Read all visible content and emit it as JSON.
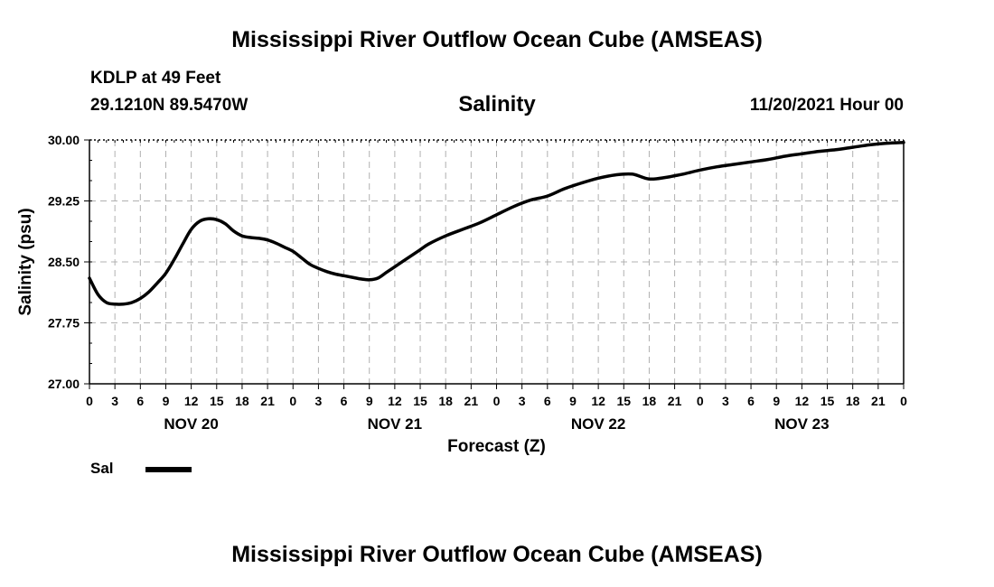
{
  "page": {
    "title": "Mississippi River Outflow Ocean Cube (AMSEAS)",
    "footer_title": "Mississippi River Outflow Ocean Cube (AMSEAS)"
  },
  "station": {
    "name": "KDLP at 49 Feet",
    "coords": "29.1210N  89.5470W",
    "date": "11/20/2021 Hour 00"
  },
  "legend": {
    "label": "Sal"
  },
  "chart_data": {
    "type": "line",
    "title": "Salinity",
    "xlabel": "Forecast (Z)",
    "ylabel": "Salinity (psu)",
    "ylim": [
      27.0,
      30.0
    ],
    "yticks": [
      "27.00",
      "27.75",
      "28.50",
      "29.25",
      "30.00"
    ],
    "xlim_hours": [
      0,
      96
    ],
    "xtick_step_hours": 3,
    "xtick_labels": [
      "0",
      "3",
      "6",
      "9",
      "12",
      "15",
      "18",
      "21",
      "0",
      "3",
      "6",
      "9",
      "12",
      "15",
      "18",
      "21",
      "0",
      "3",
      "6",
      "9",
      "12",
      "15",
      "18",
      "21",
      "0",
      "3",
      "6",
      "9",
      "12",
      "15",
      "18",
      "21",
      "0"
    ],
    "day_labels": [
      {
        "hour": 12,
        "label": "NOV 20"
      },
      {
        "hour": 36,
        "label": "NOV 21"
      },
      {
        "hour": 60,
        "label": "NOV 22"
      },
      {
        "hour": 84,
        "label": "NOV 23"
      }
    ],
    "grid": true,
    "series": [
      {
        "name": "Sal",
        "color": "#000000",
        "x": [
          0,
          1,
          2,
          3,
          4,
          5,
          6,
          7,
          8,
          9,
          10,
          11,
          12,
          13,
          14,
          15,
          16,
          17,
          18,
          19,
          20,
          21,
          22,
          23,
          24,
          25,
          26,
          27,
          28,
          29,
          30,
          31,
          32,
          33,
          34,
          35,
          36,
          37,
          38,
          39,
          40,
          42,
          44,
          46,
          48,
          50,
          52,
          54,
          56,
          58,
          60,
          62,
          64,
          66,
          68,
          69,
          70,
          72,
          74,
          76,
          78,
          80,
          82,
          84,
          86,
          88,
          90,
          92,
          94,
          96
        ],
        "values": [
          28.3,
          28.1,
          28.0,
          27.98,
          27.98,
          28.0,
          28.05,
          28.13,
          28.24,
          28.36,
          28.53,
          28.72,
          28.9,
          29.0,
          29.03,
          29.02,
          28.97,
          28.88,
          28.82,
          28.8,
          28.79,
          28.77,
          28.73,
          28.68,
          28.63,
          28.55,
          28.47,
          28.42,
          28.38,
          28.35,
          28.33,
          28.31,
          28.29,
          28.28,
          28.3,
          28.37,
          28.44,
          28.51,
          28.58,
          28.65,
          28.72,
          28.82,
          28.9,
          28.98,
          29.08,
          29.18,
          29.26,
          29.31,
          29.4,
          29.47,
          29.53,
          29.57,
          29.58,
          29.52,
          29.54,
          29.56,
          29.58,
          29.63,
          29.67,
          29.7,
          29.73,
          29.76,
          29.8,
          29.83,
          29.86,
          29.88,
          29.91,
          29.94,
          29.96,
          29.97
        ]
      }
    ]
  }
}
